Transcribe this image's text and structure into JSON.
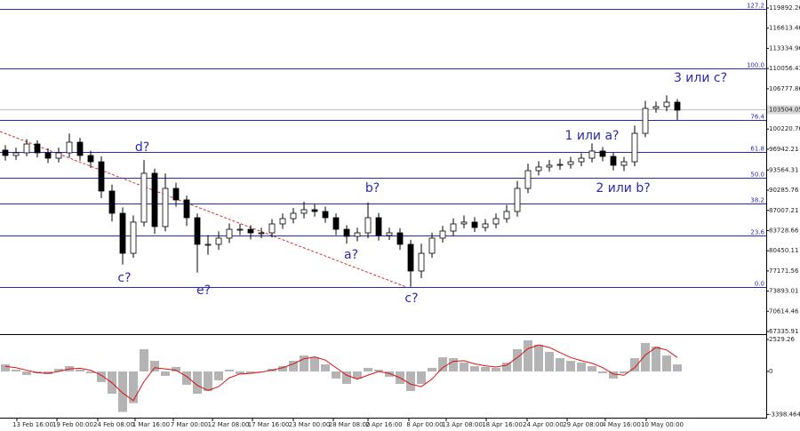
{
  "chart_data": {
    "type": "candlestick",
    "ylim": [
      67047,
      121192
    ],
    "yticks": [
      119892.26,
      116613.46,
      113334.96,
      110056.41,
      106777.86,
      100220.76,
      96942.21,
      93564.31,
      90285.76,
      87007.21,
      83728.66,
      80450.11,
      77171.56,
      73893.01,
      70614.46,
      67335.91
    ],
    "current_price": 103504.05,
    "candle_color": "#000000",
    "open": [
      96800,
      95930,
      96360,
      97800,
      96360,
      95490,
      96360,
      98090,
      95930,
      94910,
      90150,
      86540,
      80040,
      85100,
      93040,
      84380,
      90580,
      88710,
      85820,
      81490,
      81490,
      82500,
      83940,
      83940,
      83360,
      83360,
      84810,
      85670,
      86540,
      87120,
      86830,
      85820,
      83940,
      82790,
      83360,
      85820,
      82930,
      83360,
      81490,
      77160,
      80040,
      82500,
      83650,
      84810,
      85100,
      84230,
      84810,
      85670,
      86830,
      90580,
      93470,
      94050,
      94340,
      94480,
      94910,
      95490,
      96650,
      95780,
      94340,
      94910,
      99530,
      103580,
      103870,
      104590
    ],
    "high": [
      97600,
      97200,
      98600,
      98400,
      97100,
      97200,
      99500,
      98800,
      96700,
      95800,
      91200,
      87500,
      86200,
      95200,
      93800,
      93000,
      91500,
      89400,
      86500,
      83000,
      83600,
      84900,
      84800,
      84600,
      84200,
      85600,
      86500,
      87400,
      88400,
      88000,
      87600,
      86500,
      84600,
      84200,
      88300,
      86600,
      84200,
      84100,
      82200,
      81600,
      83400,
      84500,
      85700,
      86200,
      85900,
      85600,
      86500,
      87900,
      91800,
      94600,
      95000,
      95200,
      95400,
      95700,
      96300,
      97900,
      97300,
      96400,
      95700,
      100800,
      104800,
      104700,
      105700,
      105100
    ],
    "low": [
      95100,
      95200,
      95800,
      95600,
      94700,
      94800,
      95600,
      95100,
      93900,
      89000,
      85200,
      78200,
      79300,
      84400,
      83200,
      83600,
      87600,
      84500,
      76900,
      79800,
      80600,
      81700,
      83000,
      82300,
      82500,
      82600,
      84000,
      84900,
      85700,
      86000,
      85000,
      83000,
      81600,
      82000,
      82500,
      82100,
      82200,
      80600,
      74600,
      76000,
      79300,
      81800,
      82900,
      84100,
      83500,
      83600,
      84100,
      85000,
      86000,
      89800,
      92700,
      93300,
      93600,
      93800,
      94200,
      94800,
      95000,
      93500,
      93400,
      94200,
      98900,
      102900,
      103100,
      101700
    ],
    "close": [
      95930,
      96360,
      97800,
      96360,
      95490,
      96360,
      98090,
      95930,
      94910,
      90150,
      86540,
      80040,
      85100,
      93040,
      84380,
      90580,
      88710,
      85820,
      81490,
      81490,
      82500,
      83940,
      83940,
      83360,
      83360,
      84810,
      85670,
      86540,
      87120,
      86830,
      85820,
      83940,
      82790,
      83360,
      85820,
      82930,
      83360,
      81490,
      77160,
      80040,
      82500,
      83650,
      84810,
      85100,
      84230,
      84810,
      85670,
      86830,
      90580,
      93470,
      94050,
      94340,
      94480,
      94910,
      95490,
      96650,
      95780,
      94340,
      94910,
      99530,
      103580,
      103870,
      104590,
      103290
    ],
    "levels_color": "#2a2ab0",
    "levels": [
      {
        "label": "127.2",
        "price": 119756
      },
      {
        "label": "100.0",
        "price": 110100
      },
      {
        "label": "76.4",
        "price": 101722
      },
      {
        "label": "61.8",
        "price": 96539
      },
      {
        "label": "50.0",
        "price": 92350
      },
      {
        "label": "38.2",
        "price": 88161
      },
      {
        "label": "23.6",
        "price": 82978
      },
      {
        "label": "0.0",
        "price": 74600
      }
    ],
    "annotations": [
      "d?",
      "c?",
      "e?",
      "a?",
      "b?",
      "c?",
      "1 или a?",
      "2 или b?",
      "3 или c?"
    ],
    "xtick_labels": [
      "13 Feb 16:00",
      "19 Feb 00:00",
      "24 Feb 08:00",
      "1 Mar 16:00",
      "7 Mar 00:00",
      "12 Mar 08:00",
      "17 Mar 16:00",
      "23 Mar 00:00",
      "28 Mar 08:00",
      "2 Apr 16:00",
      "8 Apr 00:00",
      "13 Apr 08:00",
      "18 Apr 16:00",
      "24 Apr 00:00",
      "29 Apr 08:00",
      "4 May 16:00",
      "10 May 00:00"
    ],
    "indicator": {
      "ylim": [
        -3654,
        2810
      ],
      "yticks": [
        2529.26,
        0.0,
        -3398.464
      ],
      "histogram_color": "#b4b4b4",
      "signal_color": "#e01010",
      "histogram": [
        560,
        140,
        -280,
        -140,
        -210,
        210,
        420,
        140,
        -140,
        -840,
        -1760,
        -3200,
        -2500,
        1760,
        840,
        -350,
        350,
        -1050,
        -1760,
        -1550,
        -700,
        140,
        -210,
        -140,
        0,
        210,
        420,
        840,
        1260,
        1120,
        560,
        -560,
        -980,
        -560,
        280,
        140,
        -420,
        -980,
        -1550,
        -980,
        280,
        1120,
        1050,
        700,
        420,
        350,
        280,
        700,
        1760,
        2460,
        2110,
        1550,
        1050,
        840,
        700,
        420,
        -140,
        -560,
        -140,
        1050,
        2250,
        1970,
        1260,
        560
      ],
      "signal": [
        400,
        300,
        100,
        -100,
        -150,
        0,
        200,
        250,
        100,
        -300,
        -900,
        -1700,
        -2300,
        -800,
        300,
        200,
        100,
        -400,
        -1100,
        -1500,
        -1200,
        -500,
        -200,
        -150,
        -50,
        100,
        300,
        600,
        1000,
        1150,
        900,
        300,
        -300,
        -600,
        -300,
        0,
        -150,
        -500,
        -1000,
        -1200,
        -600,
        300,
        800,
        850,
        600,
        450,
        350,
        500,
        1100,
        1800,
        2100,
        1900,
        1500,
        1100,
        850,
        650,
        300,
        -200,
        -300,
        300,
        1300,
        1900,
        1700,
        1100
      ]
    }
  }
}
